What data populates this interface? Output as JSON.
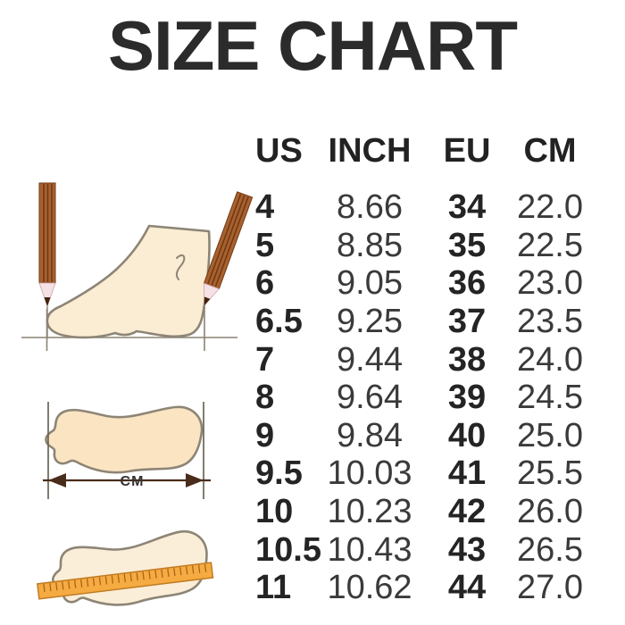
{
  "page": {
    "title": "SIZE CHART"
  },
  "chart_data": {
    "type": "table",
    "title": "SIZE CHART",
    "columns": [
      "US",
      "INCH",
      "EU",
      "CM"
    ],
    "rows": [
      [
        "4",
        "8.66",
        "34",
        "22.0"
      ],
      [
        "5",
        "8.85",
        "35",
        "22.5"
      ],
      [
        "6",
        "9.05",
        "36",
        "23.0"
      ],
      [
        "6.5",
        "9.25",
        "37",
        "23.5"
      ],
      [
        "7",
        "9.44",
        "38",
        "24.0"
      ],
      [
        "8",
        "9.64",
        "39",
        "24.5"
      ],
      [
        "9",
        "9.84",
        "40",
        "25.0"
      ],
      [
        "9.5",
        "10.03",
        "41",
        "25.5"
      ],
      [
        "10",
        "10.23",
        "42",
        "26.0"
      ],
      [
        "10.5",
        "10.43",
        "43",
        "26.5"
      ],
      [
        "11",
        "10.62",
        "44",
        "27.0"
      ]
    ],
    "bold_columns": [
      0,
      2
    ],
    "legend_position": "none",
    "grid": false
  },
  "illustrations": {
    "cm_label": "CM",
    "icons": [
      "pencil-icon",
      "foot-side-icon",
      "footprint-icon",
      "ruler-icon",
      "measure-arrow-icon"
    ]
  },
  "colors": {
    "text_dark": "#2b2b2b",
    "text_values": "#3a3a3a",
    "skin_light": "#fbeed8",
    "skin_warm": "#fae4c2",
    "outline": "#8d8575",
    "pencil_body": "#a9612f",
    "pencil_stripe": "#6f3a14",
    "arrow_brown": "#4a2c1a",
    "ruler_orange": "#f6ab42",
    "background": "#ffffff"
  }
}
